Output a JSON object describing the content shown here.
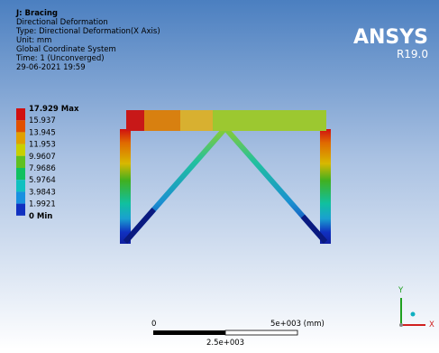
{
  "header": {
    "title": "J: Bracing",
    "lines": [
      "Directional Deformation",
      "Type: Directional Deformation(X Axis)",
      "Unit: mm",
      "Global Coordinate System",
      "Time: 1 (Unconverged)",
      "29-06-2021 19:59"
    ]
  },
  "logo": {
    "name": "ANSYS",
    "version": "R19.0"
  },
  "legend": {
    "labels": [
      "17.929 Max",
      "15.937",
      "13.945",
      "11.953",
      "9.9607",
      "7.9686",
      "5.9764",
      "3.9843",
      "1.9921",
      "0 Min"
    ]
  },
  "scale": {
    "start": "0",
    "end": "5e+003 (mm)",
    "middle": "2.5e+003"
  },
  "triad": {
    "x": "X",
    "y": "Y"
  }
}
